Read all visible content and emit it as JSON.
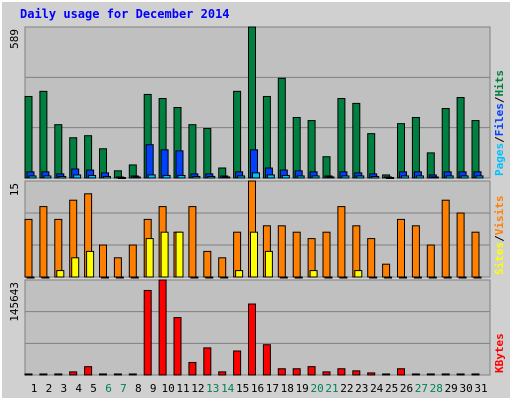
{
  "chart_data": [
    {
      "type": "bar",
      "title": "Daily usage for December 2014",
      "separator": "/",
      "ylim": [
        0,
        589
      ],
      "yticks": [
        589
      ],
      "grid": true,
      "series": [
        {
          "name": "Pages",
          "color": "#00c0ff",
          "values": [
            8,
            8,
            6,
            12,
            10,
            6,
            2,
            4,
            12,
            10,
            10,
            6,
            6,
            4,
            8,
            20,
            12,
            10,
            8,
            8,
            4,
            8,
            8,
            6,
            2,
            8,
            8,
            4,
            8,
            8,
            8
          ]
        },
        {
          "name": "Files",
          "color": "#0040ff",
          "values": [
            24,
            24,
            16,
            35,
            31,
            20,
            4,
            8,
            130,
            110,
            106,
            16,
            16,
            8,
            24,
            110,
            39,
            31,
            28,
            24,
            8,
            24,
            20,
            16,
            4,
            24,
            24,
            12,
            24,
            24,
            24
          ]
        },
        {
          "name": "Hits",
          "color": "#008040",
          "values": [
            318,
            338,
            208,
            157,
            165,
            114,
            28,
            51,
            326,
            310,
            275,
            208,
            193,
            39,
            338,
            589,
            318,
            389,
            236,
            224,
            83,
            310,
            291,
            173,
            12,
            212,
            236,
            98,
            271,
            314,
            224
          ]
        }
      ]
    },
    {
      "type": "bar",
      "separator": "/",
      "ylim": [
        0,
        15
      ],
      "yticks": [
        15
      ],
      "grid": true,
      "series": [
        {
          "name": "Sites",
          "color": "#ffff00",
          "values": [
            0,
            0,
            1,
            3,
            4,
            0,
            0,
            0,
            6,
            7,
            7,
            0,
            0,
            0,
            1,
            7,
            4,
            0,
            0,
            1,
            0,
            0,
            1,
            0,
            0,
            0,
            0,
            0,
            0,
            0,
            0
          ]
        },
        {
          "name": "Visits",
          "color": "#ff8000",
          "values": [
            9,
            11,
            9,
            12,
            13,
            5,
            3,
            5,
            9,
            11,
            7,
            11,
            4,
            3,
            7,
            15,
            8,
            8,
            7,
            6,
            7,
            11,
            8,
            6,
            2,
            9,
            8,
            5,
            12,
            10,
            7
          ]
        }
      ]
    },
    {
      "type": "bar",
      "ylim": [
        0,
        145643
      ],
      "yticks": [
        145643
      ],
      "grid": true,
      "categories": [
        "1",
        "2",
        "3",
        "4",
        "5",
        "6",
        "7",
        "8",
        "9",
        "10",
        "11",
        "12",
        "13",
        "14",
        "15",
        "16",
        "17",
        "18",
        "19",
        "20",
        "21",
        "22",
        "23",
        "24",
        "25",
        "26",
        "27",
        "28",
        "29",
        "30",
        "31"
      ],
      "category_colors": [
        "#000000",
        "#000000",
        "#000000",
        "#000000",
        "#000000",
        "#00805c",
        "#00805c",
        "#000000",
        "#000000",
        "#000000",
        "#000000",
        "#000000",
        "#00805c",
        "#00805c",
        "#000000",
        "#000000",
        "#000000",
        "#000000",
        "#000000",
        "#00805c",
        "#00805c",
        "#000000",
        "#000000",
        "#000000",
        "#000000",
        "#000000",
        "#00805c",
        "#00805c",
        "#000000",
        "#000000",
        "#000000"
      ],
      "series": [
        {
          "name": "KBytes",
          "color": "#ff0000",
          "values": [
            1600,
            1600,
            1600,
            4800,
            12800,
            1600,
            1600,
            1600,
            129600,
            145643,
            88000,
            19200,
            41600,
            4800,
            36800,
            108800,
            46400,
            9600,
            9600,
            12800,
            4800,
            9600,
            6400,
            3200,
            1600,
            9600,
            1600,
            1600,
            1600,
            1600,
            1600
          ]
        }
      ]
    }
  ]
}
